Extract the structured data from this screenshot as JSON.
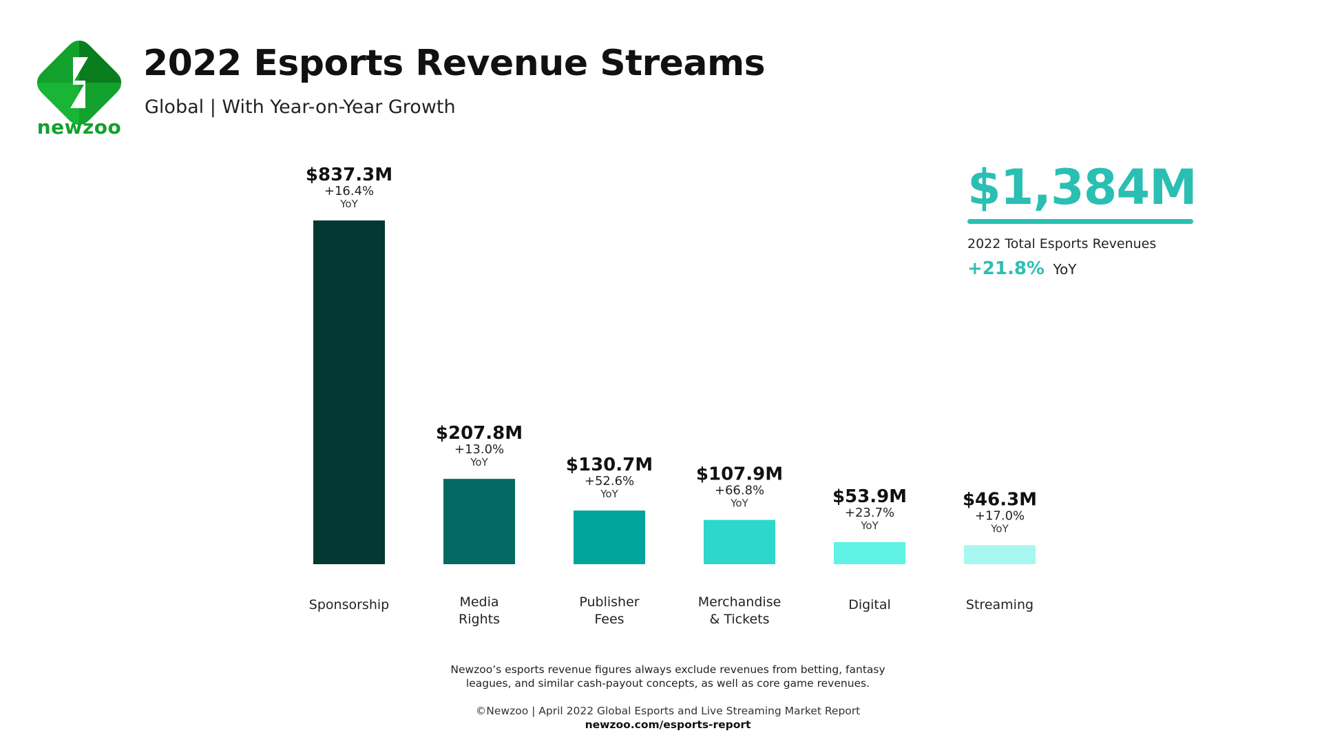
{
  "header": {
    "logo_text": "newzoo",
    "title": "2022 Esports Revenue Streams",
    "subtitle": "Global | With Year-on-Year Growth"
  },
  "colors": {
    "brand_green": "#11a12c",
    "accent_teal": "#2bbfb3",
    "bar_colors": [
      "#043833",
      "#026a62",
      "#00a49b",
      "#2dd7c9",
      "#5ff3e6",
      "#a8f7f0"
    ]
  },
  "chart_data": {
    "type": "bar",
    "title": "2022 Esports Revenue Streams",
    "subtitle": "Global | With Year-on-Year Growth",
    "categories": [
      [
        "Sponsorship"
      ],
      [
        "Media",
        "Rights"
      ],
      [
        "Publisher",
        "Fees"
      ],
      [
        "Merchandise",
        "& Tickets"
      ],
      [
        "Digital"
      ],
      [
        "Streaming"
      ]
    ],
    "values": [
      837.3,
      207.8,
      130.7,
      107.9,
      53.9,
      46.3
    ],
    "value_labels": [
      "$837.3M",
      "$207.8M",
      "$130.7M",
      "$107.9M",
      "$53.9M",
      "$46.3M"
    ],
    "yoy_labels": [
      "+16.4%",
      "+13.0%",
      "+52.6%",
      "+66.8%",
      "+23.7%",
      "+17.0%"
    ],
    "yoy_word": "YoY",
    "unit": "USD millions",
    "ylim": [
      0,
      837.3
    ],
    "grid": false,
    "legend": "none"
  },
  "total": {
    "value": "$1,384M",
    "caption": "2022 Total Esports Revenues",
    "growth": "+21.8%",
    "growth_suffix": "YoY"
  },
  "footer": {
    "disclaimer_line1": "Newzoo’s esports revenue figures always exclude revenues from betting, fantasy",
    "disclaimer_line2": "leagues, and similar cash-payout concepts, as well as core game revenues.",
    "source": "©Newzoo | April 2022 Global Esports and Live Streaming Market Report",
    "url": "newzoo.com/esports-report"
  }
}
